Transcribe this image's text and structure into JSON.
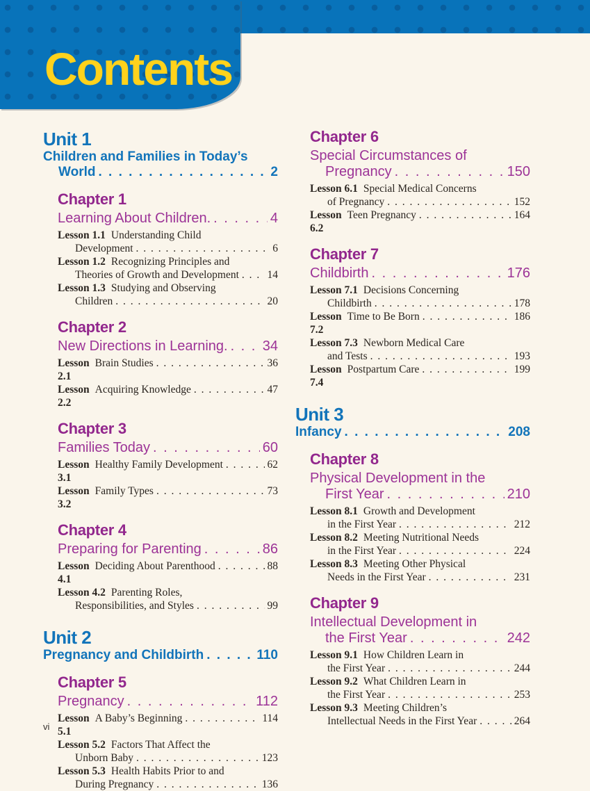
{
  "header": {
    "title": "Contents",
    "band_blue": "#0873ba",
    "band_dot_blue": "#0a619e",
    "title_yellow": "#ffd21c"
  },
  "colors": {
    "unit_blue": "#1274ba",
    "chapter_purple": "#9c3397",
    "lesson_text": "#2b2520",
    "page_background": "#faf5eb"
  },
  "footer": {
    "page_number": "vi"
  },
  "toc": {
    "columns": [
      {
        "blocks": [
          {
            "kind": "unit",
            "heading": "Unit 1",
            "title_lines": [
              "Children and Families in Today’s",
              "World"
            ],
            "page": "2"
          },
          {
            "kind": "chapter",
            "heading": "Chapter 1",
            "title_lines": [
              "Learning About Children."
            ],
            "page": "4",
            "lessons": [
              {
                "label": "Lesson 1.1",
                "lines": [
                  "Understanding Child",
                  "Development"
                ],
                "page": "6"
              },
              {
                "label": "Lesson 1.2",
                "lines": [
                  "Recognizing Principles and",
                  "Theories of Growth and Development"
                ],
                "page": "14"
              },
              {
                "label": "Lesson 1.3",
                "lines": [
                  "Studying and Observing",
                  "Children"
                ],
                "page": "20"
              }
            ]
          },
          {
            "kind": "chapter",
            "heading": "Chapter 2",
            "title_lines": [
              "New Directions in Learning."
            ],
            "page": "34",
            "lessons": [
              {
                "label": "Lesson 2.1",
                "lines": [
                  "Brain Studies"
                ],
                "page": "36"
              },
              {
                "label": "Lesson 2.2",
                "lines": [
                  "Acquiring Knowledge"
                ],
                "page": "47"
              }
            ]
          },
          {
            "kind": "chapter",
            "heading": "Chapter 3",
            "title_lines": [
              "Families Today"
            ],
            "page": "60",
            "lessons": [
              {
                "label": "Lesson 3.1",
                "lines": [
                  "Healthy Family Development"
                ],
                "page": "62"
              },
              {
                "label": "Lesson 3.2",
                "lines": [
                  "Family Types"
                ],
                "page": "73"
              }
            ]
          },
          {
            "kind": "chapter",
            "heading": "Chapter 4",
            "title_lines": [
              "Preparing for Parenting"
            ],
            "page": "86",
            "lessons": [
              {
                "label": "Lesson 4.1",
                "lines": [
                  "Deciding About Parenthood"
                ],
                "page": "88"
              },
              {
                "label": "Lesson 4.2",
                "lines": [
                  "Parenting Roles,",
                  "Responsibilities, and Styles"
                ],
                "page": "99"
              }
            ]
          },
          {
            "kind": "unit",
            "heading": "Unit 2",
            "title_lines": [
              "Pregnancy and Childbirth"
            ],
            "page": "110"
          },
          {
            "kind": "chapter",
            "heading": "Chapter 5",
            "title_lines": [
              "Pregnancy"
            ],
            "page": "112",
            "lessons": [
              {
                "label": "Lesson 5.1",
                "lines": [
                  "A Baby’s Beginning"
                ],
                "page": "114"
              },
              {
                "label": "Lesson 5.2",
                "lines": [
                  "Factors That Affect the",
                  "Unborn Baby"
                ],
                "page": "123"
              },
              {
                "label": "Lesson 5.3",
                "lines": [
                  "Health Habits Prior to and",
                  "During Pregnancy"
                ],
                "page": "136"
              }
            ]
          }
        ]
      },
      {
        "blocks": [
          {
            "kind": "chapter",
            "heading": "Chapter 6",
            "title_lines": [
              "Special Circumstances of",
              "Pregnancy"
            ],
            "page": "150",
            "lessons": [
              {
                "label": "Lesson 6.1",
                "lines": [
                  "Special Medical Concerns",
                  "of Pregnancy"
                ],
                "page": "152"
              },
              {
                "label": "Lesson 6.2",
                "lines": [
                  "Teen Pregnancy"
                ],
                "page": "164"
              }
            ]
          },
          {
            "kind": "chapter",
            "heading": "Chapter 7",
            "title_lines": [
              "Childbirth"
            ],
            "page": "176",
            "lessons": [
              {
                "label": "Lesson 7.1",
                "lines": [
                  "Decisions Concerning",
                  "Childbirth"
                ],
                "page": "178"
              },
              {
                "label": "Lesson 7.2",
                "lines": [
                  "Time to Be Born"
                ],
                "page": "186"
              },
              {
                "label": "Lesson 7.3",
                "lines": [
                  "Newborn Medical Care",
                  "and Tests"
                ],
                "page": "193"
              },
              {
                "label": "Lesson 7.4",
                "lines": [
                  "Postpartum Care"
                ],
                "page": "199"
              }
            ]
          },
          {
            "kind": "unit",
            "heading": "Unit 3",
            "title_lines": [
              "Infancy"
            ],
            "page": "208"
          },
          {
            "kind": "chapter",
            "heading": "Chapter 8",
            "title_lines": [
              "Physical Development in the",
              "First Year"
            ],
            "page": "210",
            "lessons": [
              {
                "label": "Lesson 8.1",
                "lines": [
                  "Growth and Development",
                  "in the First Year"
                ],
                "page": "212"
              },
              {
                "label": "Lesson 8.2",
                "lines": [
                  "Meeting Nutritional Needs",
                  "in the First Year"
                ],
                "page": "224"
              },
              {
                "label": "Lesson 8.3",
                "lines": [
                  "Meeting Other Physical",
                  "Needs in the First Year"
                ],
                "page": "231"
              }
            ]
          },
          {
            "kind": "chapter",
            "heading": "Chapter 9",
            "title_lines": [
              "Intellectual Development in",
              "the First Year"
            ],
            "page": "242",
            "lessons": [
              {
                "label": "Lesson 9.1",
                "lines": [
                  "How Children Learn in",
                  "the First Year"
                ],
                "page": "244"
              },
              {
                "label": "Lesson 9.2",
                "lines": [
                  "What Children Learn in",
                  "the First Year"
                ],
                "page": "253"
              },
              {
                "label": "Lesson 9.3",
                "lines": [
                  "Meeting Children’s",
                  "Intellectual Needs in the First Year"
                ],
                "page": "264"
              }
            ]
          }
        ]
      }
    ]
  }
}
